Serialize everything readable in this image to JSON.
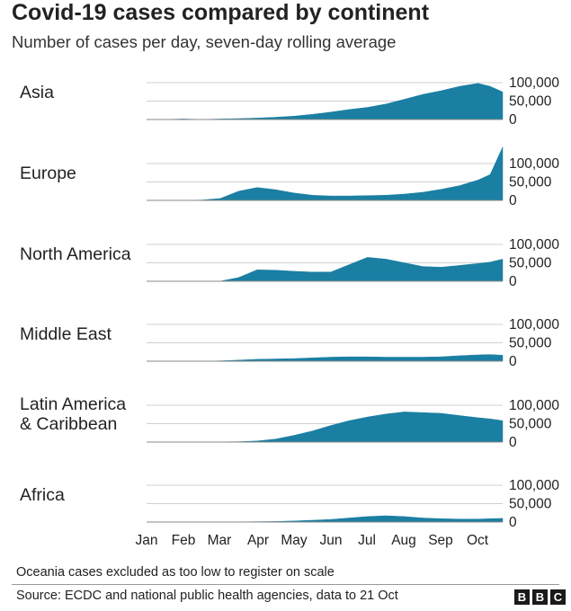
{
  "header": {
    "title": "Covid-19 cases compared by continent",
    "subtitle": "Number of cases per day, seven-day rolling average"
  },
  "footer": {
    "note": "Oceania cases excluded as too low to register on scale",
    "source": "Source: ECDC and national public health agencies, data to 21 Oct",
    "logo_letters": [
      "B",
      "B",
      "C"
    ]
  },
  "colors": {
    "area": "#1a7fa2",
    "gridline": "#d0d0d0",
    "baseline": "#888888",
    "text": "#222222"
  },
  "chart_data": {
    "type": "area",
    "title": "Covid-19 cases compared by continent",
    "subtitle": "Number of cases per day, seven-day rolling average",
    "x_axis": {
      "unit": "month of 2020",
      "range": [
        0,
        9.67
      ],
      "tick_labels": [
        "Jan",
        "Feb",
        "Mar",
        "Apr",
        "May",
        "Jun",
        "Jul",
        "Aug",
        "Sep",
        "Oct"
      ]
    },
    "y_axis": {
      "range": [
        0,
        100000
      ],
      "tick_labels": [
        "100,000",
        "50,000",
        "0"
      ]
    },
    "grid": true,
    "x": [
      0,
      0.5,
      1,
      1.5,
      2,
      2.5,
      3,
      3.5,
      4,
      4.5,
      5,
      5.5,
      6,
      6.5,
      7,
      7.5,
      8,
      8.5,
      9,
      9.33,
      9.67
    ],
    "series": [
      {
        "name": "Asia",
        "values": [
          0,
          200,
          1500,
          200,
          1500,
          2500,
          4000,
          6000,
          9000,
          14000,
          20000,
          27000,
          33000,
          42000,
          55000,
          68000,
          78000,
          90000,
          98000,
          90000,
          75000
        ]
      },
      {
        "name": "Europe",
        "values": [
          0,
          0,
          0,
          1000,
          5000,
          25000,
          35000,
          29000,
          20000,
          14000,
          12000,
          12000,
          13000,
          14000,
          17000,
          22000,
          30000,
          40000,
          55000,
          70000,
          145000
        ]
      },
      {
        "name": "North America",
        "values": [
          0,
          0,
          0,
          0,
          200,
          10000,
          31000,
          30000,
          27000,
          25000,
          25000,
          45000,
          65000,
          60000,
          50000,
          40000,
          38000,
          43000,
          48000,
          52000,
          60000
        ]
      },
      {
        "name": "Middle East",
        "values": [
          0,
          0,
          0,
          100,
          1000,
          3000,
          5000,
          6000,
          7000,
          9000,
          11000,
          12000,
          12000,
          11000,
          11000,
          11000,
          12000,
          15000,
          17000,
          18000,
          16000
        ]
      },
      {
        "name": "Latin America\n& Caribbean",
        "values": [
          0,
          0,
          0,
          100,
          500,
          1000,
          3000,
          8000,
          18000,
          30000,
          45000,
          58000,
          68000,
          76000,
          82000,
          80000,
          78000,
          72000,
          66000,
          63000,
          58000
        ]
      },
      {
        "name": "Africa",
        "values": [
          0,
          0,
          0,
          0,
          100,
          500,
          1000,
          1500,
          3000,
          5000,
          7000,
          11000,
          15000,
          17000,
          15000,
          11000,
          9000,
          8000,
          8000,
          9000,
          10000
        ]
      }
    ]
  }
}
